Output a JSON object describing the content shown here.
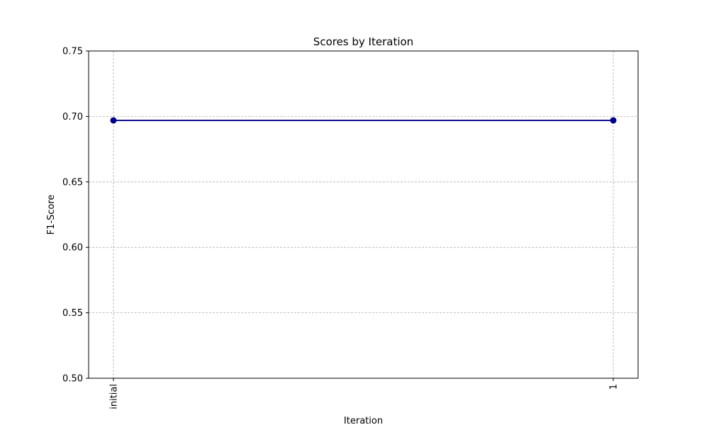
{
  "chart_data": {
    "type": "line",
    "title": "Scores by Iteration",
    "xlabel": "Iteration",
    "ylabel": "F1-Score",
    "categories": [
      "initial",
      "1"
    ],
    "series": [
      {
        "values": [
          0.697,
          0.697
        ],
        "color": "#00008b"
      }
    ],
    "ylim": [
      0.5,
      0.75
    ],
    "yticks": [
      "0.50",
      "0.55",
      "0.60",
      "0.65",
      "0.70",
      "0.75"
    ],
    "grid": true,
    "x_tick_rotation": "vertical"
  }
}
